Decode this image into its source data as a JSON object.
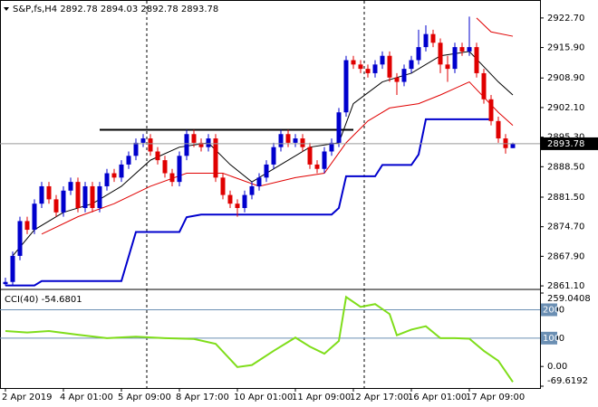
{
  "chart_data": [
    {
      "type": "candlestick",
      "title": "S&P,fs,H4 2892.78 2894.03 2892.78 2893.78",
      "categories": [
        "2 Apr 2019",
        null,
        null,
        null,
        null,
        null,
        null,
        null,
        "4 Apr 01:00",
        null,
        null,
        null,
        null,
        null,
        null,
        null,
        "5 Apr 09:00",
        null,
        null,
        null,
        null,
        null,
        null,
        null,
        "8 Apr 17:00",
        null,
        null,
        null,
        null,
        null,
        null,
        null,
        "10 Apr 01:00",
        null,
        null,
        null,
        null,
        null,
        null,
        null,
        "11 Apr 09:00",
        null,
        null,
        null,
        null,
        null,
        null,
        null,
        "12 Apr 17:00",
        null,
        null,
        null,
        null,
        null,
        null,
        null,
        "16 Apr 01:00",
        null,
        null,
        null,
        null,
        null,
        null,
        null,
        "17 Apr 09:00",
        null,
        null,
        null,
        null,
        null,
        null
      ],
      "open": [
        2861.5,
        2862,
        2868,
        2876,
        2874,
        2880,
        2884,
        2881,
        2878,
        2883,
        2885,
        2879,
        2884,
        2879,
        2884,
        2887,
        2886,
        2889,
        2891,
        2894,
        2895,
        2892,
        2890,
        2887,
        2885,
        2891,
        2896,
        2894,
        2893,
        2895,
        2886,
        2882,
        2880,
        2879,
        2882,
        2884,
        2886,
        2889,
        2893,
        2896,
        2894,
        2895,
        2893,
        2889,
        2888,
        2892,
        2894,
        2901,
        2913,
        2912,
        2911,
        2910,
        2912,
        2914,
        2909,
        2908,
        2911,
        2913,
        2916,
        2919,
        2917,
        2912,
        2911,
        2916,
        2915,
        2916,
        2910,
        2904,
        2899,
        2895,
        2892.78
      ],
      "high": [
        2863,
        2869,
        2877,
        2877,
        2881,
        2885,
        2885,
        2882,
        2884,
        2886,
        2886,
        2885,
        2885,
        2885,
        2888,
        2888,
        2890,
        2892,
        2895,
        2896,
        2896,
        2893,
        2891,
        2888,
        2892,
        2897,
        2897,
        2895,
        2896,
        2896,
        2887,
        2883,
        2881,
        2883,
        2885,
        2887,
        2890,
        2894,
        2897,
        2897,
        2896,
        2896,
        2894,
        2890,
        2893,
        2895,
        2902,
        2914,
        2914,
        2913,
        2912,
        2913,
        2915,
        2915,
        2910,
        2912,
        2914,
        2920,
        2921,
        2920,
        2918,
        2914,
        2917,
        2917,
        2923,
        2917,
        2911,
        2905,
        2900,
        2896,
        2894.03
      ],
      "low": [
        2861.1,
        2861,
        2867,
        2873,
        2873,
        2879,
        2880,
        2877,
        2877,
        2882,
        2878,
        2878,
        2878,
        2878,
        2883,
        2885,
        2885,
        2888,
        2890,
        2893,
        2891,
        2889,
        2886,
        2884,
        2884,
        2890,
        2893,
        2892,
        2892,
        2885,
        2881,
        2879,
        2877,
        2878,
        2881,
        2883,
        2885,
        2888,
        2892,
        2893,
        2893,
        2892,
        2888,
        2887,
        2887,
        2891,
        2893,
        2900,
        2911,
        2910,
        2909,
        2909,
        2911,
        2908,
        2905,
        2907,
        2910,
        2912,
        2915,
        2916,
        2910,
        2908,
        2910,
        2914,
        2914,
        2909,
        2903,
        2898,
        2894,
        2891.5,
        2892.78
      ],
      "close": [
        2862,
        2868,
        2876,
        2874,
        2880,
        2884,
        2881,
        2878,
        2883,
        2885,
        2879,
        2884,
        2879,
        2884,
        2887,
        2886,
        2889,
        2891,
        2894,
        2895,
        2892,
        2890,
        2887,
        2885,
        2891,
        2896,
        2894,
        2893,
        2895,
        2886,
        2882,
        2880,
        2879,
        2882,
        2884,
        2886,
        2889,
        2893,
        2896,
        2894,
        2895,
        2893,
        2889,
        2888,
        2892,
        2894,
        2901,
        2913,
        2912,
        2911,
        2910,
        2912,
        2914,
        2909,
        2908,
        2911,
        2913,
        2916,
        2919,
        2917,
        2912,
        2911,
        2916,
        2915,
        2916,
        2910,
        2904,
        2899,
        2895,
        2892.78,
        2893.78
      ],
      "up_color": "#0000cd",
      "down_color": "#e00000",
      "lines": [
        {
          "color": "#000000",
          "x": [
            1,
            4,
            8,
            12,
            16,
            20,
            24,
            28,
            31,
            34,
            38,
            42,
            46,
            48,
            52,
            56,
            60,
            64,
            68,
            70
          ],
          "values": [
            2868,
            2874,
            2878,
            2880,
            2884,
            2890,
            2893,
            2894,
            2889,
            2885,
            2889,
            2893,
            2894,
            2903,
            2908,
            2910,
            2914,
            2915,
            2908,
            2905
          ]
        },
        {
          "color": "#e00000",
          "x": [
            5,
            10,
            15,
            20,
            25,
            30,
            35,
            40,
            44,
            47,
            50,
            53,
            57,
            60,
            64,
            68,
            70
          ],
          "values": [
            2873,
            2877,
            2880,
            2884,
            2887,
            2887,
            2884,
            2886,
            2887,
            2894,
            2899,
            2902,
            2903,
            2905,
            2908,
            2901,
            2898
          ]
        },
        {
          "color": "#e00000",
          "x": [
            65,
            67,
            70
          ],
          "values": [
            2922.7,
            2919.5,
            2918.5
          ]
        },
        {
          "color": "#0000cd",
          "x": [
            0,
            4,
            5,
            16,
            18,
            24,
            25,
            27,
            45,
            46,
            47,
            51,
            52,
            56,
            57,
            58,
            67
          ],
          "values": [
            2861.2,
            2861.2,
            2862.2,
            2862.2,
            2873.5,
            2873.5,
            2876.9,
            2877.5,
            2877.5,
            2879,
            2886.3,
            2886.3,
            2888.9,
            2888.9,
            2891.3,
            2899.4,
            2899.4
          ]
        },
        {
          "color": "#000000",
          "x": [
            13,
            48
          ],
          "values": [
            2897,
            2897
          ]
        }
      ],
      "last_price": {
        "value": 2893.78,
        "label": "2893.78"
      },
      "ylim": [
        2860.7,
        2926.0
      ],
      "yticks": [
        {
          "value": 2922.7,
          "label": "2922.70"
        },
        {
          "value": 2915.9,
          "label": "2915.90"
        },
        {
          "value": 2908.9,
          "label": "2908.90"
        },
        {
          "value": 2902.1,
          "label": "2902.10"
        },
        {
          "value": 2895.3,
          "label": "2895.30"
        },
        {
          "value": 2888.5,
          "label": "2888.50"
        },
        {
          "value": 2881.5,
          "label": "2881.50"
        },
        {
          "value": 2874.7,
          "label": "2874.70"
        },
        {
          "value": 2867.9,
          "label": "2867.90"
        },
        {
          "value": 2861.1,
          "label": "2861.10"
        }
      ]
    },
    {
      "type": "line",
      "title": "CCI(40) -54.6801",
      "color": "#7fdd1a",
      "x": [
        0,
        3,
        6,
        10,
        14,
        18,
        22,
        26,
        29,
        32,
        34,
        37,
        40,
        42,
        44,
        46,
        47,
        49,
        51,
        53,
        54,
        56,
        58,
        60,
        62,
        64,
        66,
        68,
        70
      ],
      "values": [
        125,
        120,
        125,
        112,
        100,
        105,
        100,
        97,
        80,
        -2,
        5,
        55,
        102,
        70,
        45,
        90,
        245,
        210,
        220,
        185,
        110,
        130,
        142,
        100,
        100,
        98,
        55,
        20,
        -54.6801
      ],
      "ylim": [
        -69.6192,
        259.0408
      ],
      "yticks": [
        259.0408,
        200,
        100,
        {
          "value": 0,
          "label": "0.00"
        },
        -69.6192
      ],
      "levels": [
        200,
        100
      ]
    }
  ]
}
